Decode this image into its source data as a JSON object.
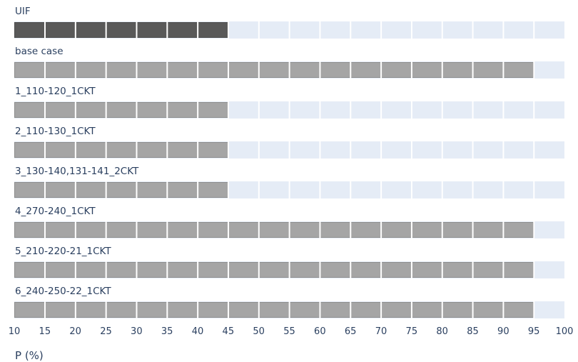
{
  "chart_data": {
    "type": "bar",
    "orientation": "horizontal",
    "categories": [
      "UIF",
      "base case",
      "1_110-120_1CKT",
      "2_110-130_1CKT",
      "3_130-140,131-141_2CKT",
      "4_270-240_1CKT",
      "5_210-220-21_1CKT",
      "6_240-250-22_1CKT"
    ],
    "values": [
      45,
      95,
      45,
      45,
      45,
      95,
      95,
      95
    ],
    "bar_colors": [
      "#595959",
      "#a5a5a5",
      "#a5a5a5",
      "#a5a5a5",
      "#a5a5a5",
      "#a5a5a5",
      "#a5a5a5",
      "#a5a5a5"
    ],
    "title": "",
    "xlabel": "P (%)",
    "ylabel": "",
    "xlim": [
      10,
      100
    ],
    "xticks": [
      10,
      15,
      20,
      25,
      30,
      35,
      40,
      45,
      50,
      55,
      60,
      65,
      70,
      75,
      80,
      85,
      90,
      95,
      100
    ],
    "grid": "vertical white gridlines every 5 units",
    "legend": "none",
    "colors": {
      "track_background": "#e5ecf6",
      "gridline": "#ffffff",
      "text": "#2a3f5f",
      "page_background": "#ffffff",
      "highlight_bar": "#595959",
      "default_bar": "#a5a5a5"
    }
  }
}
